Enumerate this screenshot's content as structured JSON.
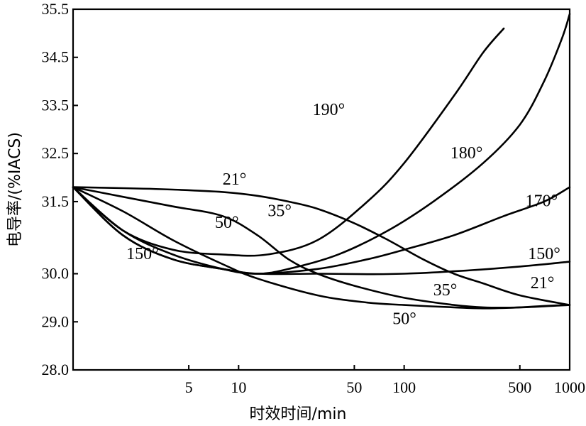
{
  "chart_data": {
    "type": "line",
    "title": "",
    "xlabel": "时效时间/min",
    "ylabel": "电导率/(%IACS)",
    "x_scale": "log",
    "xlim": [
      1,
      1000
    ],
    "ylim": [
      28.0,
      35.5
    ],
    "x_ticks": [
      {
        "value": 5,
        "label": "5"
      },
      {
        "value": 10,
        "label": "10"
      },
      {
        "value": 50,
        "label": "50"
      },
      {
        "value": 100,
        "label": "100"
      },
      {
        "value": 500,
        "label": "500"
      },
      {
        "value": 1000,
        "label": "1000"
      }
    ],
    "y_ticks": [
      {
        "value": 28.0,
        "label": "28.0"
      },
      {
        "value": 29.0,
        "label": "29.0"
      },
      {
        "value": 30.0,
        "label": "30.0"
      },
      {
        "value": 31.5,
        "label": "31.5"
      },
      {
        "value": 32.5,
        "label": "32.5"
      },
      {
        "value": 33.5,
        "label": "33.5"
      },
      {
        "value": 34.5,
        "label": "34.5"
      },
      {
        "value": 35.5,
        "label": "35.5"
      }
    ],
    "series": [
      {
        "name": "190°",
        "label_at": {
          "x": 28,
          "y": 33.3
        },
        "x": [
          1,
          2,
          4,
          8,
          15,
          30,
          60,
          100,
          200,
          300,
          400
        ],
        "y": [
          31.8,
          30.9,
          30.5,
          30.4,
          30.4,
          30.7,
          31.5,
          32.3,
          33.7,
          34.6,
          35.1
        ]
      },
      {
        "name": "180°",
        "label_at": {
          "x": 190,
          "y": 32.4
        },
        "x": [
          1,
          2,
          4,
          8,
          13,
          20,
          40,
          80,
          150,
          300,
          500,
          700,
          900,
          1000
        ],
        "y": [
          31.8,
          30.8,
          30.3,
          30.1,
          30.0,
          30.1,
          30.4,
          30.9,
          31.5,
          32.3,
          33.1,
          34.0,
          34.9,
          35.4
        ]
      },
      {
        "name": "170°",
        "label_at": {
          "x": 540,
          "y": 31.4
        },
        "x": [
          1,
          2,
          4,
          8,
          13,
          30,
          60,
          100,
          200,
          400,
          700,
          1000
        ],
        "y": [
          31.8,
          30.9,
          30.4,
          30.1,
          30.0,
          30.1,
          30.3,
          30.5,
          30.8,
          31.2,
          31.5,
          31.8
        ]
      },
      {
        "name": "150°",
        "label_at": {
          "x": 2.1,
          "y": 30.3
        },
        "x": [
          1,
          2,
          4,
          8,
          13,
          30,
          60,
          100,
          200,
          500,
          1000
        ],
        "y": [
          31.8,
          30.8,
          30.3,
          30.1,
          30.0,
          30.0,
          29.99,
          30.0,
          30.05,
          30.15,
          30.25
        ]
      },
      {
        "name": "150°",
        "label_at": {
          "x": 560,
          "y": 30.3
        },
        "x": [],
        "y": []
      },
      {
        "name": "50°",
        "label_at": {
          "x": 7.2,
          "y": 30.95
        },
        "x": [
          1,
          2,
          4,
          8,
          13,
          30,
          60,
          100,
          200,
          300,
          500,
          700,
          1000
        ],
        "y": [
          31.8,
          31.3,
          30.7,
          30.2,
          29.9,
          29.55,
          29.4,
          29.35,
          29.3,
          29.28,
          29.3,
          29.33,
          29.35
        ]
      },
      {
        "name": "50°",
        "label_at": {
          "x": 85,
          "y": 28.95
        },
        "x": [],
        "y": []
      },
      {
        "name": "35°",
        "label_at": {
          "x": 15,
          "y": 31.2
        },
        "x": [
          1,
          2,
          4,
          8,
          13,
          20,
          30,
          50,
          100,
          200,
          300,
          500,
          1000
        ],
        "y": [
          31.8,
          31.6,
          31.4,
          31.2,
          30.8,
          30.3,
          30.0,
          29.75,
          29.5,
          29.35,
          29.3,
          29.3,
          29.35
        ]
      },
      {
        "name": "35°",
        "label_at": {
          "x": 150,
          "y": 29.55
        },
        "x": [],
        "y": []
      },
      {
        "name": "21°",
        "label_at": {
          "x": 8,
          "y": 31.85
        },
        "x": [
          1,
          2,
          4,
          8,
          13,
          20,
          30,
          50,
          80,
          130,
          200,
          300,
          500,
          1000
        ],
        "y": [
          31.8,
          31.78,
          31.75,
          31.7,
          31.62,
          31.5,
          31.35,
          31.05,
          30.7,
          30.3,
          30.0,
          29.8,
          29.55,
          29.35
        ]
      },
      {
        "name": "21°",
        "label_at": {
          "x": 580,
          "y": 29.7
        },
        "x": [],
        "y": []
      }
    ]
  }
}
